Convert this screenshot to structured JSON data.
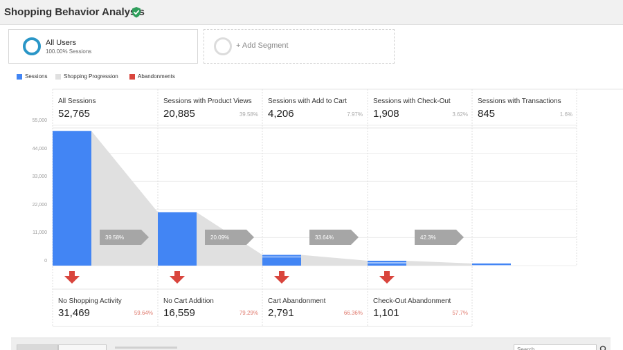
{
  "header": {
    "title": "Shopping Behavior Analysis"
  },
  "segments": {
    "active": {
      "name": "All Users",
      "subtitle": "100.00% Sessions",
      "color": "#2a96c7"
    },
    "add_label": "+ Add Segment"
  },
  "legend": [
    {
      "label": "Sessions",
      "color": "#4285f4"
    },
    {
      "label": "Shopping Progression",
      "color": "#e0e0e0"
    },
    {
      "label": "Abandonments",
      "color": "#d9453d"
    }
  ],
  "chart_data": {
    "type": "bar",
    "title": "",
    "ylim": [
      0,
      55000
    ],
    "y_ticks": [
      "0",
      "11,000",
      "22,000",
      "33,000",
      "44,000",
      "55,000"
    ],
    "steps": [
      {
        "label": "All Sessions",
        "value": 52765,
        "display": "52,765",
        "pct": ""
      },
      {
        "label": "Sessions with Product Views",
        "value": 20885,
        "display": "20,885",
        "pct": "39.58%"
      },
      {
        "label": "Sessions with Add to Cart",
        "value": 4206,
        "display": "4,206",
        "pct": "7.97%"
      },
      {
        "label": "Sessions with Check-Out",
        "value": 1908,
        "display": "1,908",
        "pct": "3.62%"
      },
      {
        "label": "Sessions with Transactions",
        "value": 845,
        "display": "845",
        "pct": "1.6%"
      }
    ],
    "progression_rates": [
      "39.58%",
      "20.09%",
      "33.64%",
      "42.3%"
    ],
    "abandonments": [
      {
        "label": "No Shopping Activity",
        "display": "31,469",
        "pct": "59.64%"
      },
      {
        "label": "No Cart Addition",
        "display": "16,559",
        "pct": "79.29%"
      },
      {
        "label": "Cart Abandonment",
        "display": "2,791",
        "pct": "66.36%"
      },
      {
        "label": "Check-Out Abandonment",
        "display": "1,101",
        "pct": "57.7%"
      }
    ],
    "colors": {
      "sessions": "#4285f4",
      "progression": "#e0e0e0",
      "abandon": "#d9453d",
      "rate_arrow": "#a6a6a6"
    }
  },
  "search": {
    "placeholder": "Search"
  }
}
